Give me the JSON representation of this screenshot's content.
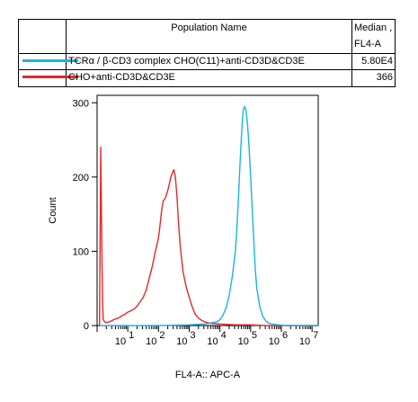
{
  "legend": {
    "header_name": "Population Name",
    "header_stat_line1": "Median ,",
    "header_stat_line2": "FL4-A",
    "rows": [
      {
        "name": "TCRα / β-CD3 complex CHO(C11)+anti-CD3D&CD3E",
        "value": "5.80E4",
        "color": "#18b4e6"
      },
      {
        "name": "CHO+anti-CD3D&CD3E",
        "value": "366",
        "color": "#e8272b"
      }
    ]
  },
  "chart_data": {
    "type": "line",
    "xlabel": "FL4-A:: APC-A",
    "ylabel": "Count",
    "xscale": "log",
    "xlim_log10": [
      0,
      7.2
    ],
    "ylim": [
      0,
      310
    ],
    "x_ticks": [
      {
        "base": "10",
        "exp": "1",
        "value": 1
      },
      {
        "base": "10",
        "exp": "2",
        "value": 2
      },
      {
        "base": "10",
        "exp": "3",
        "value": 3
      },
      {
        "base": "10",
        "exp": "4",
        "value": 4
      },
      {
        "base": "10",
        "exp": "5",
        "value": 5
      },
      {
        "base": "10",
        "exp": "6",
        "value": 6
      },
      {
        "base": "10",
        "exp": "7",
        "value": 7
      }
    ],
    "y_ticks": [
      0,
      100,
      200,
      300
    ],
    "series": [
      {
        "name": "CHO+anti-CD3D&CD3E",
        "color": "#e8272b",
        "log10_x": [
          0.08,
          0.12,
          0.14,
          0.16,
          0.18,
          0.2,
          0.25,
          0.3,
          0.4,
          0.5,
          0.6,
          0.7,
          0.8,
          0.9,
          1.0,
          1.1,
          1.2,
          1.3,
          1.4,
          1.5,
          1.6,
          1.65,
          1.7,
          1.8,
          1.9,
          2.0,
          2.05,
          2.1,
          2.15,
          2.2,
          2.25,
          2.3,
          2.35,
          2.4,
          2.45,
          2.5,
          2.55,
          2.6,
          2.65,
          2.7,
          2.75,
          2.8,
          2.9,
          3.0,
          3.1,
          3.2,
          3.3,
          3.4,
          3.5,
          3.7,
          4.0,
          4.5,
          5.0,
          5.5,
          6.0,
          6.5,
          7.0,
          7.2
        ],
        "values": [
          0,
          240,
          160,
          80,
          30,
          8,
          5,
          4,
          5,
          7,
          9,
          10,
          13,
          15,
          18,
          20,
          22,
          26,
          32,
          38,
          48,
          56,
          64,
          80,
          100,
          118,
          135,
          155,
          168,
          170,
          175,
          182,
          190,
          200,
          205,
          210,
          200,
          175,
          140,
          110,
          90,
          72,
          52,
          38,
          25,
          15,
          10,
          7,
          5,
          3,
          2,
          1,
          1,
          0,
          0,
          0,
          0,
          0
        ]
      },
      {
        "name": "TCRα / β-CD3 complex CHO(C11)+anti-CD3D&CD3E",
        "color": "#18b4e6",
        "log10_x": [
          0.1,
          1.0,
          2.0,
          3.0,
          3.5,
          3.9,
          4.0,
          4.1,
          4.2,
          4.3,
          4.4,
          4.5,
          4.55,
          4.6,
          4.65,
          4.7,
          4.73,
          4.76,
          4.8,
          4.85,
          4.9,
          4.95,
          5.0,
          5.05,
          5.1,
          5.15,
          5.2,
          5.3,
          5.4,
          5.5,
          5.6,
          5.7,
          5.9,
          6.2,
          6.6,
          7.2
        ],
        "values": [
          0,
          0,
          0,
          1,
          2,
          5,
          8,
          14,
          24,
          40,
          65,
          100,
          130,
          170,
          215,
          255,
          275,
          290,
          295,
          290,
          270,
          240,
          200,
          160,
          115,
          75,
          50,
          25,
          12,
          6,
          3,
          2,
          1,
          0,
          0,
          0
        ]
      }
    ]
  }
}
